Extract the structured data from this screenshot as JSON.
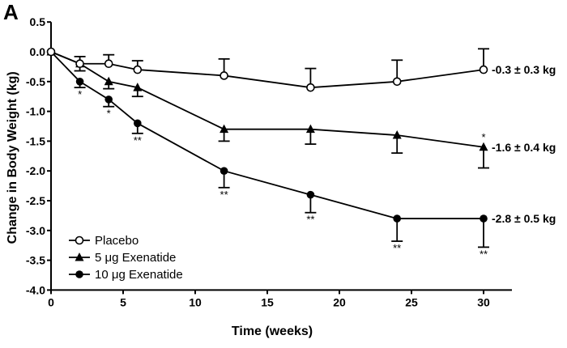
{
  "chart_data": {
    "type": "line",
    "panel_label": "A",
    "title": "",
    "xlabel": "Time (weeks)",
    "ylabel": "Change in Body Weight (kg)",
    "xlim": [
      0,
      32
    ],
    "ylim": [
      -4.0,
      0.5
    ],
    "xticks": [
      0,
      5,
      10,
      15,
      20,
      25,
      30
    ],
    "xtick_labels": [
      "0",
      "5",
      "10",
      "15",
      "20",
      "25",
      "30"
    ],
    "yticks": [
      0.5,
      0.0,
      -0.5,
      -1.0,
      -1.5,
      -2.0,
      -2.5,
      -3.0,
      -3.5,
      -4.0
    ],
    "ytick_labels": [
      "0.5",
      "0.0",
      "-0.5",
      "-1.0",
      "-1.5",
      "-2.0",
      "-2.5",
      "-3.0",
      "-3.5",
      "-4.0"
    ],
    "grid": false,
    "legend_position": "bottom-left",
    "x": [
      0,
      2,
      4,
      6,
      12,
      18,
      24,
      30
    ],
    "series": [
      {
        "name": "Placebo",
        "marker": "open-circle",
        "error_direction": "up",
        "values": [
          0.0,
          -0.2,
          -0.2,
          -0.3,
          -0.4,
          -0.6,
          -0.5,
          -0.3
        ],
        "errors": [
          0.0,
          0.12,
          0.15,
          0.15,
          0.28,
          0.32,
          0.36,
          0.35
        ],
        "significance": [
          "",
          "",
          "",
          "",
          "",
          "",
          "",
          ""
        ],
        "end_label": "-0.3 ± 0.3 kg"
      },
      {
        "name": "5 μg Exenatide",
        "marker": "filled-triangle",
        "error_direction": "down",
        "values": [
          0.0,
          -0.2,
          -0.5,
          -0.6,
          -1.3,
          -1.3,
          -1.4,
          -1.6
        ],
        "errors": [
          0.0,
          0.12,
          0.12,
          0.15,
          0.2,
          0.25,
          0.3,
          0.35
        ],
        "significance": [
          "",
          "",
          "",
          "",
          "",
          "",
          "",
          "*"
        ],
        "end_label": "-1.6 ± 0.4 kg"
      },
      {
        "name": "10 μg Exenatide",
        "marker": "filled-circle",
        "error_direction": "down",
        "values": [
          0.0,
          -0.5,
          -0.8,
          -1.2,
          -2.0,
          -2.4,
          -2.8,
          -2.8
        ],
        "errors": [
          0.0,
          0.1,
          0.12,
          0.17,
          0.28,
          0.3,
          0.38,
          0.48
        ],
        "significance": [
          "",
          "*",
          "*",
          "**",
          "**",
          "**",
          "**",
          "**"
        ],
        "end_label": "-2.8 ± 0.5 kg"
      }
    ]
  }
}
